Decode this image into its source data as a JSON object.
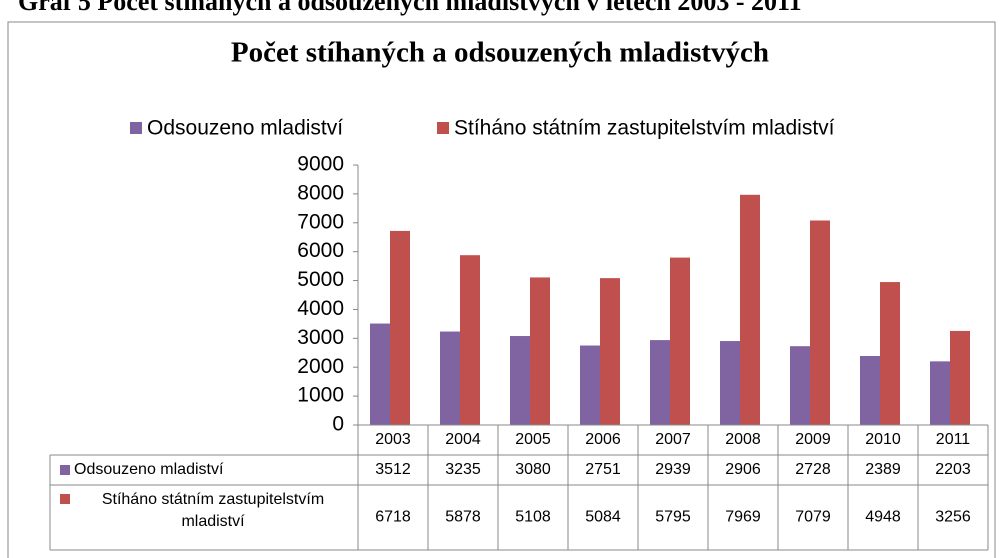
{
  "heading": "Graf 5 Počet stíhaných a odsouzených mladistvých v letech 2003 - 2011",
  "chart_data": {
    "type": "bar",
    "title": "Počet stíhaných a odsouzených mladistvých",
    "categories": [
      "2003",
      "2004",
      "2005",
      "2006",
      "2007",
      "2008",
      "2009",
      "2010",
      "2011"
    ],
    "series": [
      {
        "name": "Odsouzeno mladiství",
        "color": "#8064a2",
        "values": [
          3512,
          3235,
          3080,
          2751,
          2939,
          2906,
          2728,
          2389,
          2203
        ]
      },
      {
        "name": "Stíháno státním zastupitelstvím mladiství",
        "color": "#c0504d",
        "values": [
          6718,
          5878,
          5108,
          5084,
          5795,
          7969,
          7079,
          4948,
          3256
        ]
      }
    ],
    "ylim": [
      0,
      9000
    ],
    "yticks": [
      0,
      1000,
      2000,
      3000,
      4000,
      5000,
      6000,
      7000,
      8000,
      9000
    ],
    "legend": "top",
    "data_table": true
  }
}
